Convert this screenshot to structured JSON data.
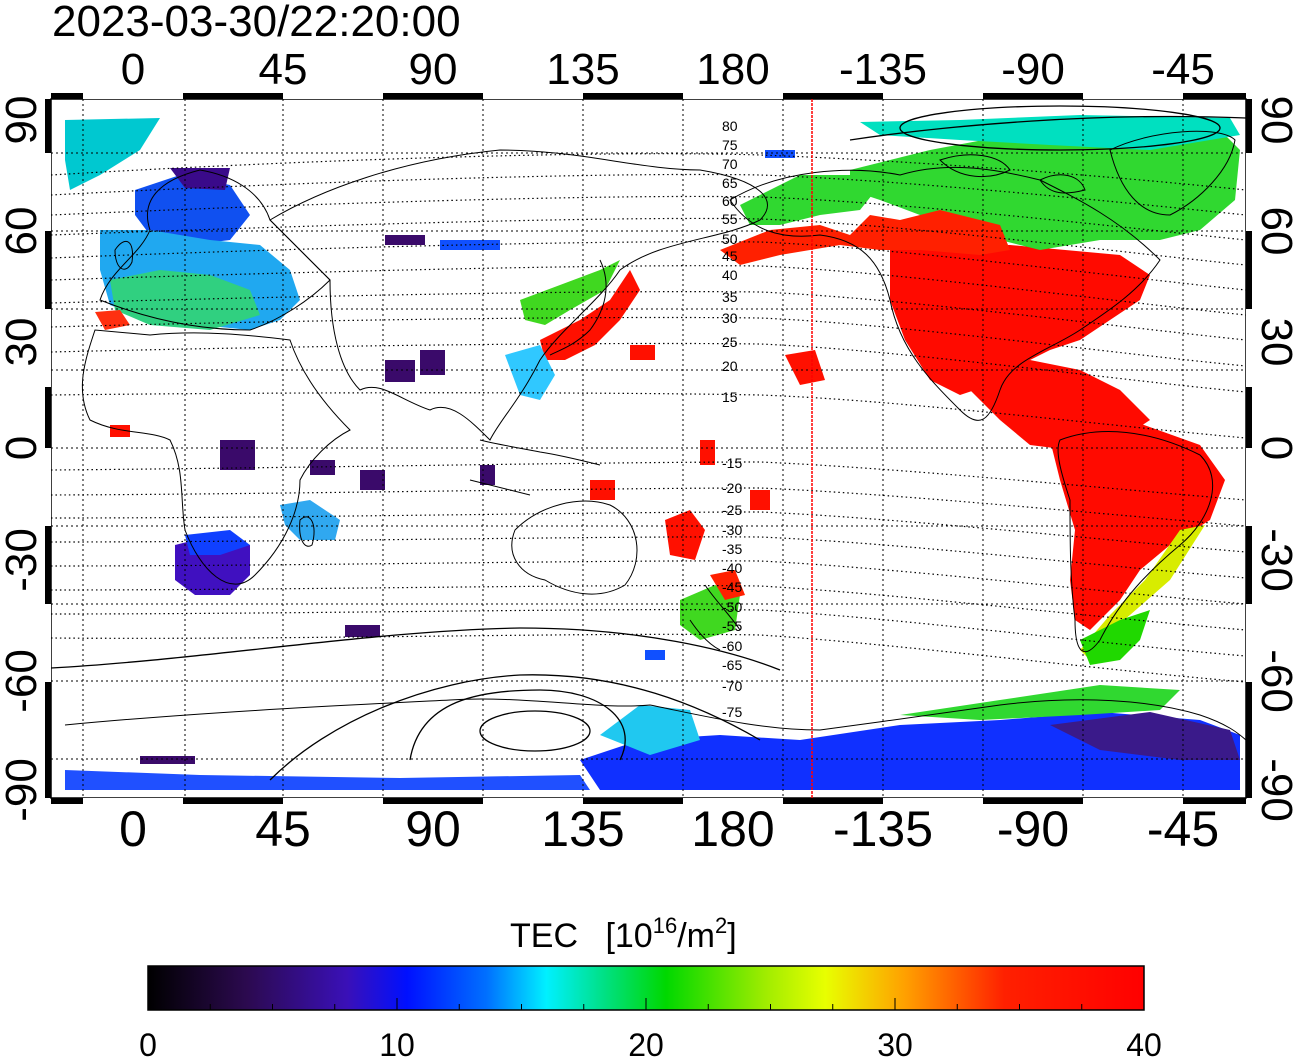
{
  "timestamp": "2023-03-30/22:20:00",
  "map": {
    "lon_ticks": [
      "0",
      "45",
      "90",
      "135",
      "180",
      "-135",
      "-90",
      "-45"
    ],
    "lat_ticks": [
      "90",
      "60",
      "30",
      "0",
      "-30",
      "-60",
      "-90"
    ],
    "terminator_longitude_label": "",
    "contour_labels_north": [
      "80",
      "75",
      "70",
      "65",
      "60",
      "55",
      "50",
      "45",
      "40",
      "35",
      "30",
      "25",
      "20",
      "15"
    ],
    "contour_labels_south": [
      "-15",
      "-20",
      "-25",
      "-30",
      "-35",
      "-40",
      "-45",
      "-50",
      "-55",
      "-60",
      "-65",
      "-70",
      "-75"
    ]
  },
  "colorbar": {
    "title": "TEC",
    "unit_prefix": "[10",
    "unit_exp": "16",
    "unit_mid": "/m",
    "unit_exp2": "2",
    "unit_suffix": "]",
    "ticks": [
      "0",
      "10",
      "20",
      "30",
      "40"
    ],
    "min": 0,
    "max": 40
  },
  "colors": {
    "terminator": "#ff0000",
    "scale": [
      "#000000",
      "#3a0a6a",
      "#3a10c8",
      "#0030ff",
      "#0090ff",
      "#00f0ff",
      "#00e070",
      "#20d800",
      "#a0ec00",
      "#ffff00",
      "#ffa000",
      "#ff3010",
      "#ff0000"
    ]
  }
}
